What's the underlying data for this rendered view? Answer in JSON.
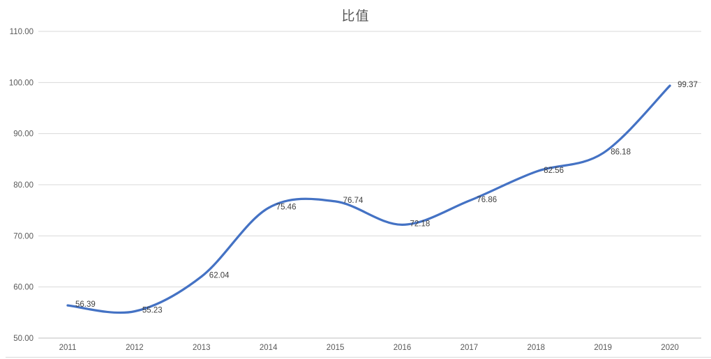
{
  "chart_data": {
    "type": "line",
    "title": "比值",
    "categories": [
      "2011",
      "2012",
      "2013",
      "2014",
      "2015",
      "2016",
      "2017",
      "2018",
      "2019",
      "2020"
    ],
    "series": [
      {
        "name": "比值",
        "values": [
          56.39,
          55.23,
          62.04,
          75.46,
          76.74,
          72.18,
          76.86,
          82.56,
          86.18,
          99.37
        ]
      }
    ],
    "data_labels": [
      "56.39",
      "55.23",
      "62.04",
      "75.46",
      "76.74",
      "72.18",
      "76.86",
      "82.56",
      "86.18",
      "99.37"
    ],
    "xlabel": "",
    "ylabel": "",
    "ylim": [
      50,
      110
    ],
    "ytick_step": 10,
    "yticks": [
      "50.00",
      "60.00",
      "70.00",
      "80.00",
      "90.00",
      "100.00",
      "110.00"
    ],
    "grid": "horizontal",
    "legend": "none",
    "smooth": true,
    "colors": {
      "line": "#4472C4",
      "grid": "#D9D9D9",
      "axis": "#BFBFBF",
      "bottom_edge": "#D9D9D9",
      "title": "#595959",
      "tick_label": "#595959",
      "data_label": "#3F3F3F"
    }
  }
}
